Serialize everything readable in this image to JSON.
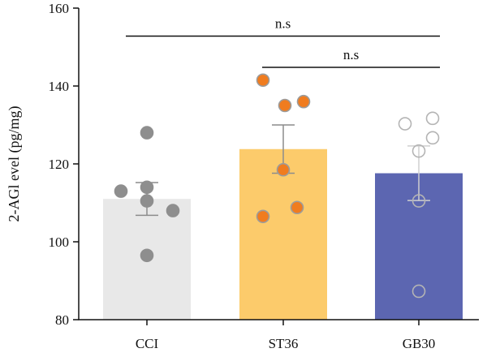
{
  "chart_data": {
    "type": "bar",
    "title": "",
    "xlabel": "",
    "ylabel": "2-AGl evel (pg/mg)",
    "ylim": [
      80,
      160
    ],
    "yticks": [
      80,
      100,
      120,
      140,
      160
    ],
    "grid": false,
    "categories": [
      "CCI",
      "ST36",
      "GB30"
    ],
    "values": [
      111,
      123.8,
      117.6
    ],
    "errors": [
      4.2,
      6.2,
      7.0
    ],
    "bar_colors": [
      "#e8e8e8",
      "#fccb6b",
      "#5c66b1"
    ],
    "errorbar_colors": [
      "#8c8c8c",
      "#8c8c8c",
      "#cfcfcf"
    ],
    "points": [
      {
        "category": "CCI",
        "values": [
          128,
          113,
          114,
          108,
          110.5,
          96.5
        ],
        "marker_fill": "#8e8e8e",
        "marker_stroke": "#8e8e8e"
      },
      {
        "category": "ST36",
        "values": [
          141.5,
          136,
          135,
          118.5,
          106.5,
          108.8
        ],
        "marker_fill": "#f07c1f",
        "marker_stroke": "#9c9c9c"
      },
      {
        "category": "GB30",
        "values": [
          130.3,
          131.7,
          126.7,
          123.3,
          110.5,
          87.3
        ],
        "marker_fill": "none",
        "marker_stroke": "#b4b4b4"
      }
    ],
    "annotations": [
      {
        "from": "CCI",
        "to": "GB30",
        "label": "n.s",
        "y": 152.8
      },
      {
        "from": "ST36",
        "to": "GB30",
        "label": "n.s",
        "y": 144.8
      }
    ]
  }
}
